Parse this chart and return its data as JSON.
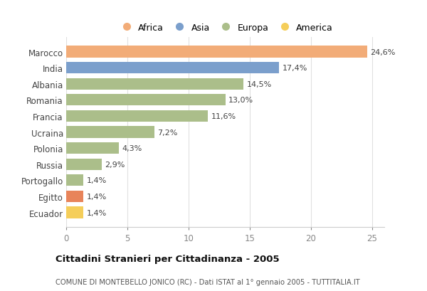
{
  "categories": [
    "Marocco",
    "India",
    "Albania",
    "Romania",
    "Francia",
    "Ucraina",
    "Polonia",
    "Russia",
    "Portogallo",
    "Egitto",
    "Ecuador"
  ],
  "values": [
    24.6,
    17.4,
    14.5,
    13.0,
    11.6,
    7.2,
    4.3,
    2.9,
    1.4,
    1.4,
    1.4
  ],
  "colors": [
    "#F2AC78",
    "#7B9FCC",
    "#ABBE8A",
    "#ABBE8A",
    "#ABBE8A",
    "#ABBE8A",
    "#ABBE8A",
    "#ABBE8A",
    "#ABBE8A",
    "#E8845A",
    "#F5CE5A"
  ],
  "labels": [
    "24,6%",
    "17,4%",
    "14,5%",
    "13,0%",
    "11,6%",
    "7,2%",
    "4,3%",
    "2,9%",
    "1,4%",
    "1,4%",
    "1,4%"
  ],
  "legend_labels": [
    "Africa",
    "Asia",
    "Europa",
    "America"
  ],
  "legend_colors": [
    "#F2AC78",
    "#7B9FCC",
    "#ABBE8A",
    "#F5CE5A"
  ],
  "title": "Cittadini Stranieri per Cittadinanza - 2005",
  "subtitle": "COMUNE DI MONTEBELLO JONICO (RC) - Dati ISTAT al 1° gennaio 2005 - TUTTITALIA.IT",
  "xlim": [
    0,
    26
  ],
  "xticks": [
    0,
    5,
    10,
    15,
    20,
    25
  ],
  "bg_color": "#ffffff",
  "grid_color": "#e0e0e0",
  "bar_height": 0.72
}
